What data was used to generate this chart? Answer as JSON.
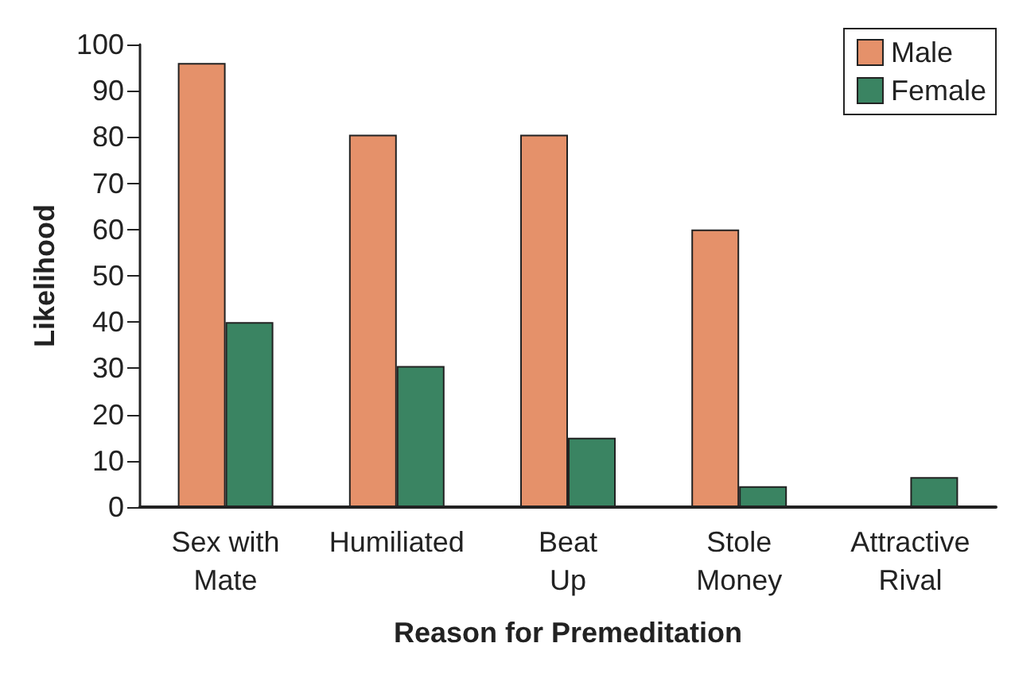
{
  "chart_data": {
    "type": "bar",
    "xlabel": "Reason for Premeditation",
    "ylabel": "Likelihood",
    "categories": [
      "Sex with\nMate",
      "Humiliated",
      "Beat\nUp",
      "Stole\nMoney",
      "Attractive\nRival"
    ],
    "series": [
      {
        "name": "Male",
        "color": "#e5916a",
        "values": [
          96,
          80.5,
          80.5,
          60,
          null
        ]
      },
      {
        "name": "Female",
        "color": "#3a8462",
        "values": [
          40,
          30.5,
          15,
          4.5,
          6.5
        ]
      }
    ],
    "ylim": [
      0,
      100
    ],
    "yticks": [
      0,
      10,
      20,
      30,
      40,
      50,
      60,
      70,
      80,
      90,
      100
    ],
    "grid": false,
    "legend": "top right"
  }
}
